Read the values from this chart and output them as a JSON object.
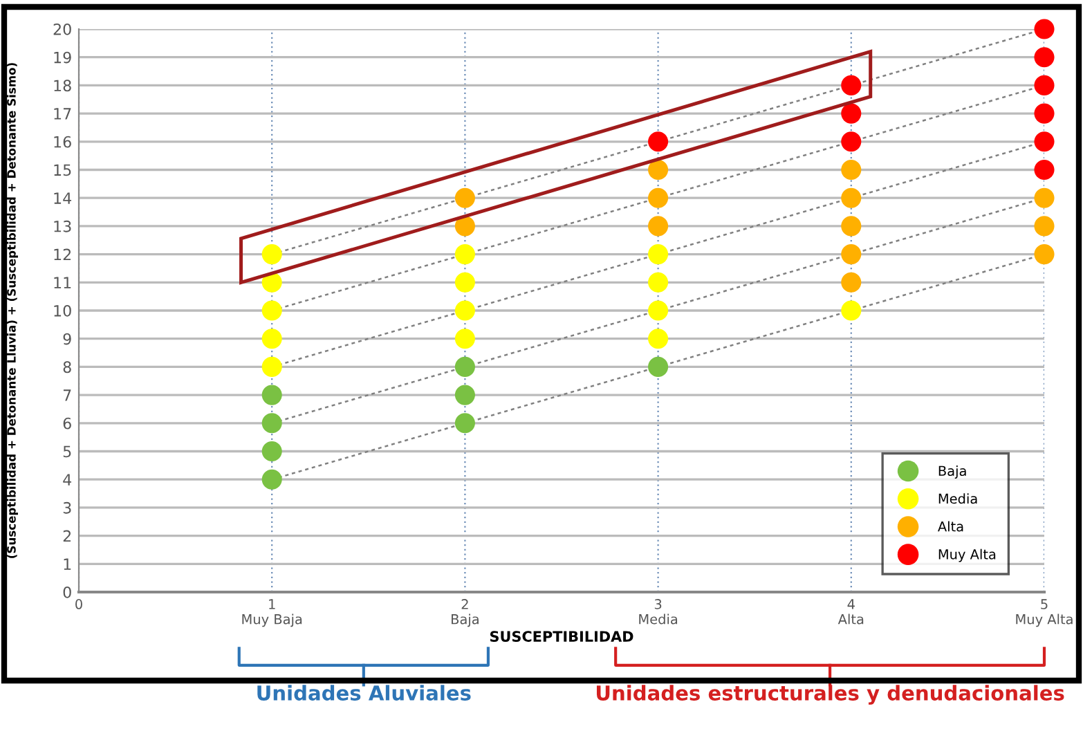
{
  "chart_data": {
    "type": "scatter",
    "xlabel": "SUSCEPTIBILIDAD",
    "ylabel": "(Susceptibilidad + Detonante Lluvia) + (Susceptibilidad + Detonante Sismo)",
    "series": [
      {
        "name": "Baja",
        "marker": "circle",
        "color": "#7ac143",
        "x": [
          1,
          1,
          1,
          1,
          2,
          2,
          2,
          3
        ],
        "values": [
          4,
          5,
          6,
          7,
          6,
          7,
          8,
          8
        ]
      },
      {
        "name": "Media",
        "marker": "circle",
        "color": "#ffff00",
        "x": [
          1,
          1,
          1,
          1,
          1,
          2,
          2,
          2,
          2,
          3,
          3,
          3,
          3,
          4
        ],
        "values": [
          8,
          9,
          10,
          11,
          12,
          9,
          10,
          11,
          12,
          9,
          10,
          11,
          12,
          10
        ]
      },
      {
        "name": "Alta",
        "marker": "circle",
        "color": "#ffb000",
        "x": [
          2,
          2,
          3,
          3,
          3,
          4,
          4,
          4,
          4,
          4,
          5,
          5,
          5
        ],
        "values": [
          13,
          14,
          13,
          14,
          15,
          11,
          12,
          13,
          14,
          15,
          12,
          13,
          14
        ]
      },
      {
        "name": "Muy Alta",
        "marker": "circle",
        "color": "#ff0000",
        "x": [
          3,
          4,
          4,
          4,
          5,
          5,
          5,
          5,
          5,
          5
        ],
        "values": [
          16,
          16,
          17,
          18,
          15,
          16,
          17,
          18,
          19,
          20
        ]
      },
      {
        "type": "line",
        "line_style": "dotted",
        "color": "#808080",
        "x": [
          1,
          2,
          3,
          4,
          5
        ],
        "values": [
          4,
          6,
          8,
          10,
          12
        ]
      },
      {
        "type": "line",
        "line_style": "dotted",
        "color": "#808080",
        "x": [
          1,
          2,
          3,
          4,
          5
        ],
        "values": [
          6,
          8,
          10,
          12,
          14
        ]
      },
      {
        "type": "line",
        "line_style": "dotted",
        "color": "#808080",
        "x": [
          1,
          2,
          3,
          4,
          5
        ],
        "values": [
          8,
          10,
          12,
          14,
          16
        ]
      },
      {
        "type": "line",
        "line_style": "dotted",
        "color": "#808080",
        "x": [
          1,
          2,
          3,
          4,
          5
        ],
        "values": [
          10,
          12,
          14,
          16,
          18
        ]
      },
      {
        "type": "line",
        "line_style": "dotted",
        "color": "#808080",
        "x": [
          1,
          2,
          3,
          4,
          5
        ],
        "values": [
          12,
          14,
          16,
          18,
          20
        ]
      }
    ],
    "xlim": [
      0,
      5
    ],
    "xticks": [
      0,
      {
        "value": 1,
        "label": "1\nMuy Baja"
      },
      {
        "value": 2,
        "label": "2\nBaja"
      },
      {
        "value": 3,
        "label": "3\nMedia"
      },
      {
        "value": 4,
        "label": "4\nAlta"
      },
      {
        "value": 5,
        "label": "5\nMuy Alta"
      }
    ],
    "ylim": [
      0,
      20
    ],
    "yticks": [
      0,
      1,
      2,
      3,
      4,
      5,
      6,
      7,
      8,
      9,
      10,
      11,
      12,
      13,
      14,
      15,
      16,
      17,
      18,
      19,
      20
    ],
    "grid": true,
    "legend": "bottom right",
    "annotations": [
      "Unidades Aluviales",
      "Unidades estructurales y denudacionales"
    ]
  }
}
